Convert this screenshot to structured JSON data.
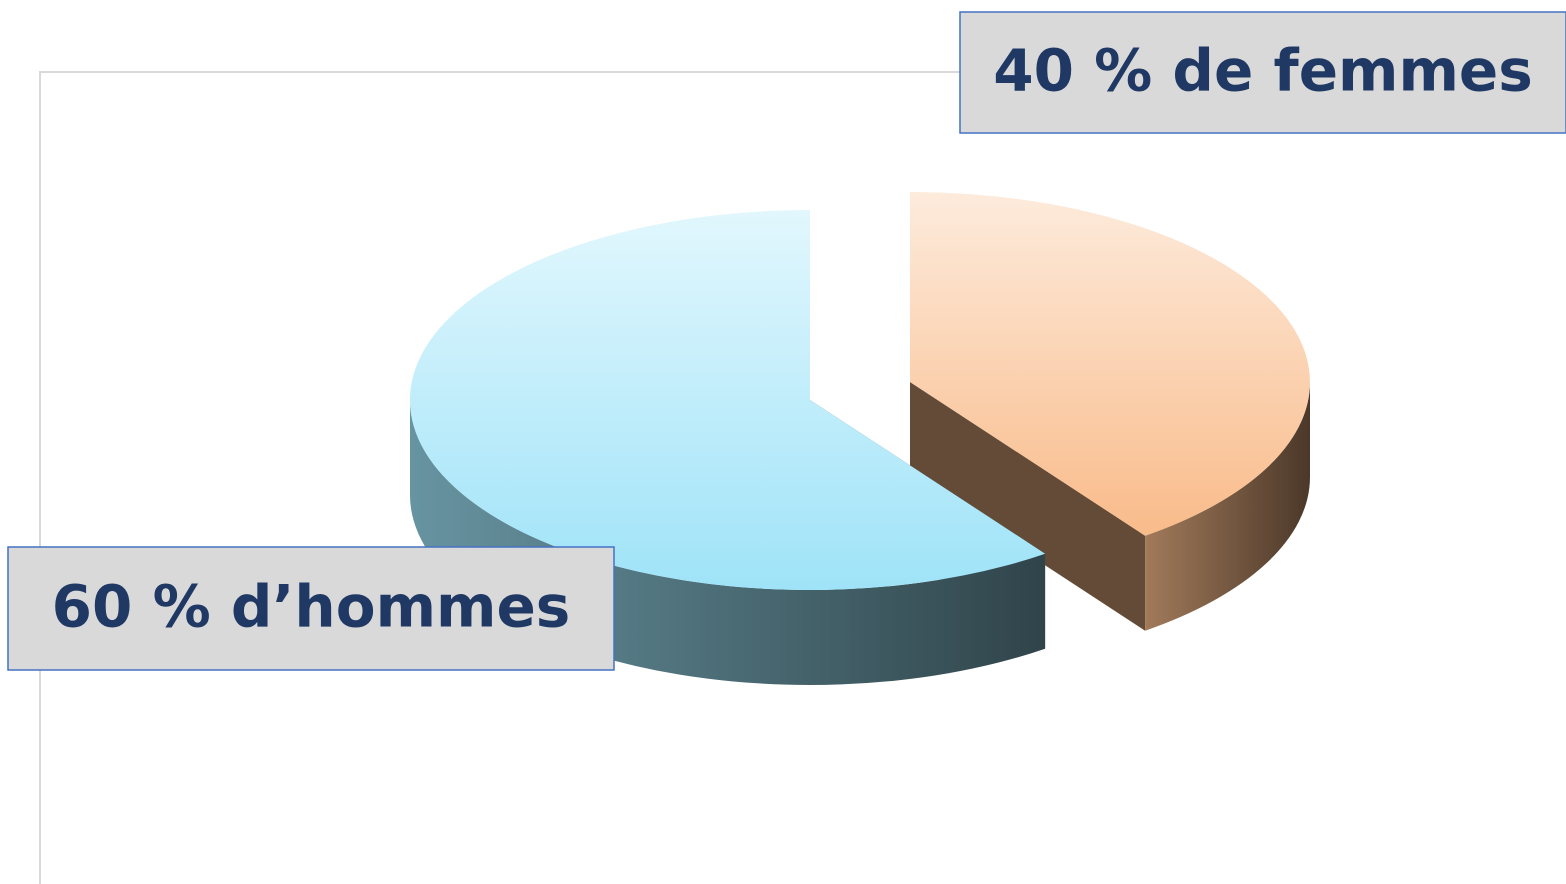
{
  "chart_data": {
    "type": "pie",
    "values": [
      40,
      60
    ],
    "value_labels": [
      "40 % de femmes",
      "60 % d’hommes"
    ],
    "colors": [
      "#f9bb8a",
      "#9fe3f8"
    ]
  }
}
